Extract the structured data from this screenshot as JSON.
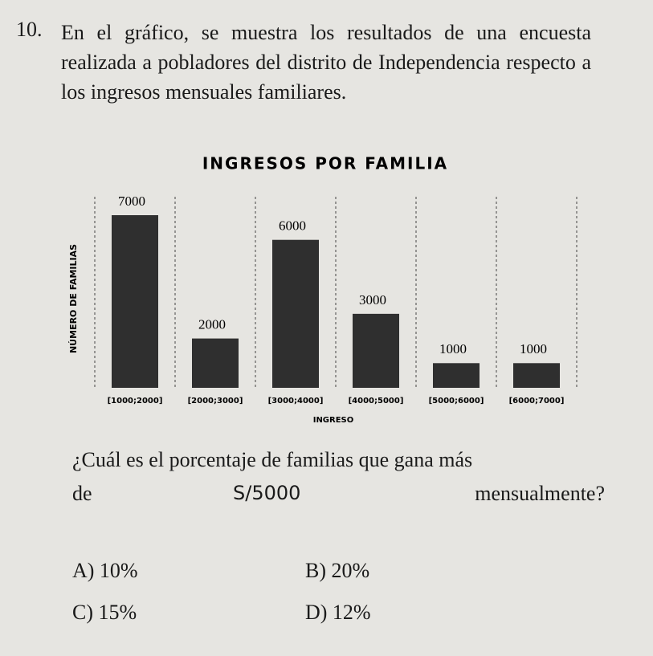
{
  "number": "10.",
  "statement": "En el gráfico, se muestra los resultados de una encuesta realizada a pobladores del distrito de Independencia respecto a los ingresos mensuales familiares.",
  "chart_data": {
    "type": "bar",
    "title": "INGRESOS POR FAMILIA",
    "y_label": "NÚMERO DE FAMILIAS",
    "x_label": "INGRESO",
    "categories": [
      "[1000;2000]",
      "[2000;3000]",
      "[3000;4000]",
      "[4000;5000]",
      "[5000;6000]",
      "[6000;7000]"
    ],
    "values": [
      7000,
      2000,
      6000,
      3000,
      1000,
      1000
    ],
    "color": "#2f2f2f"
  },
  "question": {
    "part1": "¿Cuál es el porcentaje de familias que gana más",
    "part2": "de",
    "part3": "S/5000",
    "part4": "mensualmente?"
  },
  "options": [
    "A) 10%",
    "B) 20%",
    "C) 15%",
    "D) 12%"
  ]
}
